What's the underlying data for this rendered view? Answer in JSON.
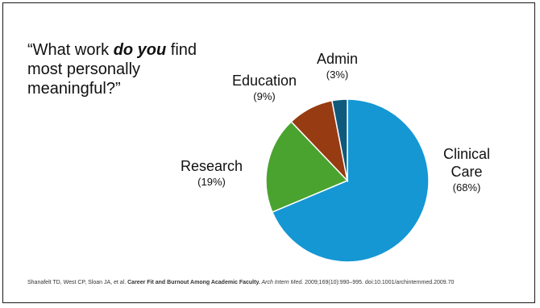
{
  "slide": {
    "question": {
      "part1": "“What work ",
      "emphasis": "do you",
      "part2": " find most personally meaningful?”"
    },
    "citation": {
      "authors": "Shanafelt TD, West CP, Sloan JA, et al. ",
      "title": "Career Fit and Burnout Among Academic Faculty.",
      "journal": " Arch Intern Med.",
      "details": " 2009;169(10):990–995. doi:10.1001/archinternmed.2009.70"
    }
  },
  "chart_data": {
    "type": "pie",
    "title": "",
    "slices": [
      {
        "label": "Clinical Care",
        "label_lines": [
          "Clinical",
          "Care"
        ],
        "pct_label": "(68%)",
        "value": 68,
        "color": "#1597d4"
      },
      {
        "label": "Research",
        "label_lines": [
          "Research"
        ],
        "pct_label": "(19%)",
        "value": 19,
        "color": "#4aa32f"
      },
      {
        "label": "Education",
        "label_lines": [
          "Education"
        ],
        "pct_label": "(9%)",
        "value": 9,
        "color": "#973b12"
      },
      {
        "label": "Admin",
        "label_lines": [
          "Admin"
        ],
        "pct_label": "(3%)",
        "value": 3,
        "color": "#0f5a7c"
      }
    ]
  }
}
